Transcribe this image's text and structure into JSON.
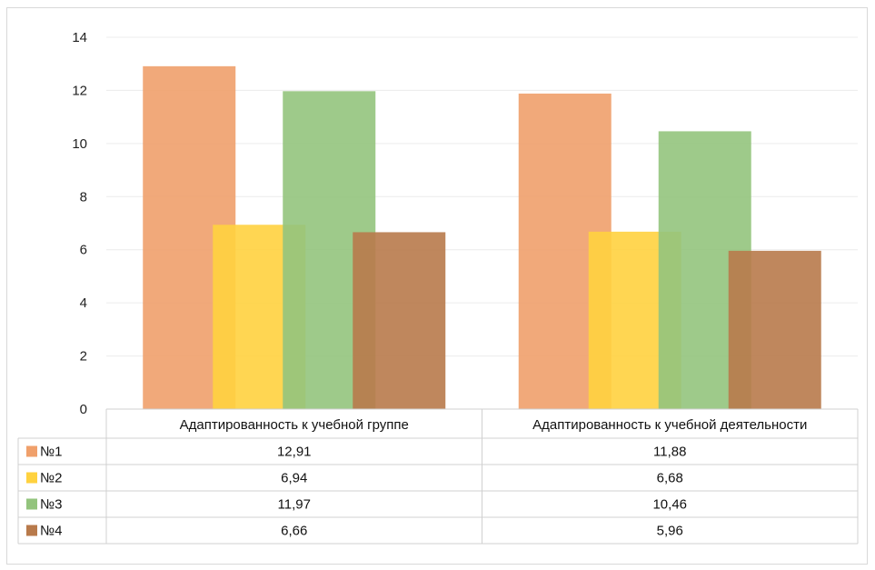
{
  "chart_data": {
    "type": "bar",
    "categories": [
      "Адаптированность к учебной группе",
      "Адаптированность к учебной деятельности"
    ],
    "series": [
      {
        "name": "№1",
        "values": [
          12.91,
          11.88
        ],
        "labels": [
          "12,91",
          "11,88"
        ],
        "color": "#f0a06b"
      },
      {
        "name": "№2",
        "values": [
          6.94,
          6.68
        ],
        "labels": [
          "6,94",
          "6,68"
        ],
        "color": "#ffd23f"
      },
      {
        "name": "№3",
        "values": [
          11.97,
          10.46
        ],
        "labels": [
          "11,97",
          "10,46"
        ],
        "color": "#93c47d"
      },
      {
        "name": "№4",
        "values": [
          6.66,
          5.96
        ],
        "labels": [
          "6,66",
          "5,96"
        ],
        "color": "#b87a4b"
      }
    ],
    "yticks": [
      "0",
      "2",
      "4",
      "6",
      "8",
      "10",
      "12",
      "14"
    ],
    "ylim": [
      0,
      14
    ],
    "grid": true,
    "data_table": true
  }
}
